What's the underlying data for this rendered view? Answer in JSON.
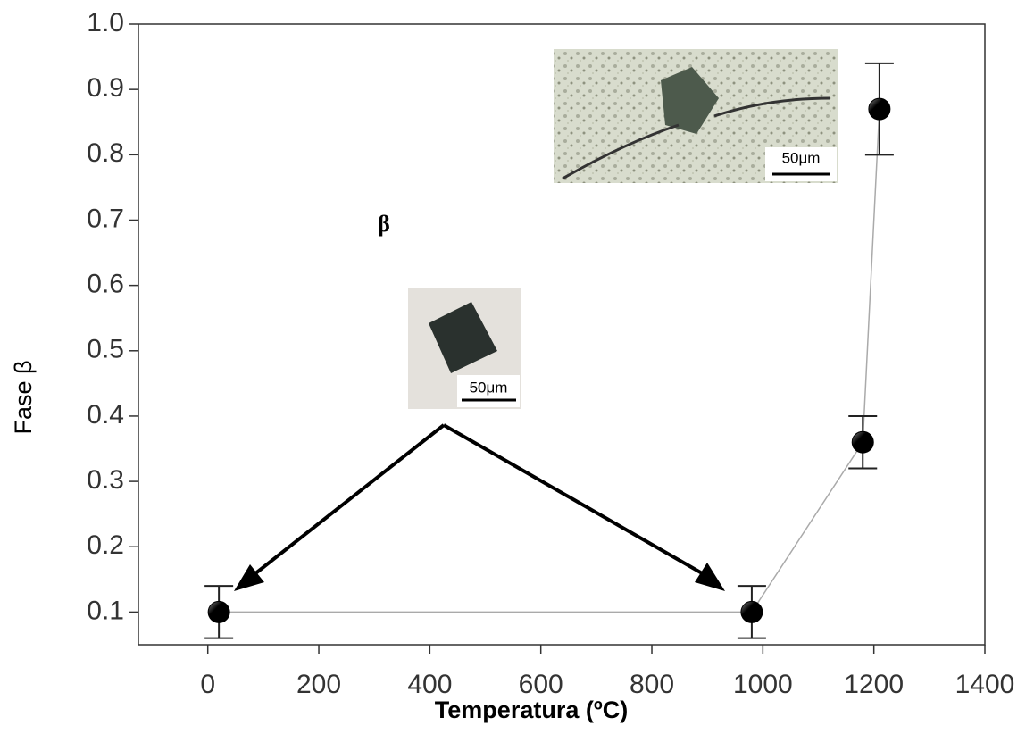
{
  "chart_data": {
    "type": "line",
    "xlabel": "Temperatura (ºC)",
    "ylabel": "Fase β",
    "x": [
      20,
      980,
      1180,
      1210
    ],
    "series": [
      {
        "values": [
          0.1,
          0.1,
          0.36,
          0.87
        ],
        "errors": [
          0.04,
          0.04,
          0.04,
          0.07
        ],
        "color": "#000000",
        "line_color": "#aaaaaa"
      }
    ],
    "xlim": [
      -125,
      1400
    ],
    "ylim": [
      0.05,
      1.0
    ],
    "xticks": [
      0,
      200,
      400,
      600,
      800,
      1000,
      1200,
      1400
    ],
    "yticks": [
      0.1,
      0.2,
      0.3,
      0.4,
      0.5,
      0.6,
      0.7,
      0.8,
      0.9,
      {
        "value": 1,
        "label": "1.0"
      }
    ],
    "annotations": [
      "β"
    ],
    "inset_scale_labels": [
      "50μm",
      "50μm"
    ]
  }
}
